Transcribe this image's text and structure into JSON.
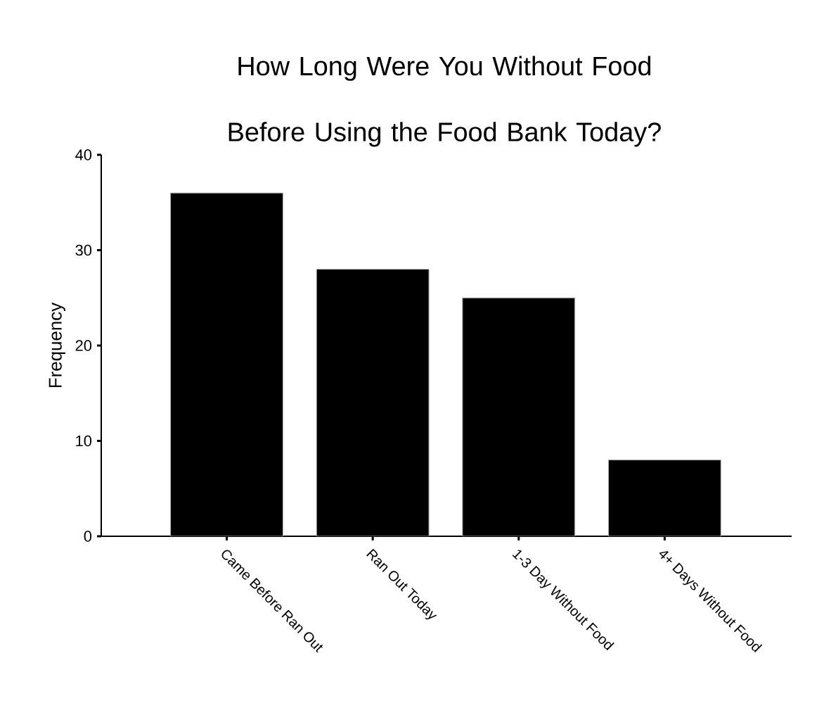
{
  "chart_data": {
    "type": "bar",
    "title": "How Long Were You Without Food Before Using the Food Bank Today?",
    "ylabel": "Frequency",
    "categories": [
      "Came Before Ran Out",
      "Ran Out Today",
      "1-3 Day Without Food",
      "4+ Days Without Food"
    ],
    "values": [
      36,
      28,
      25,
      8
    ],
    "color": "#000000",
    "ylim": [
      0,
      40
    ],
    "yticks": [
      0,
      10,
      20,
      30,
      40
    ]
  }
}
